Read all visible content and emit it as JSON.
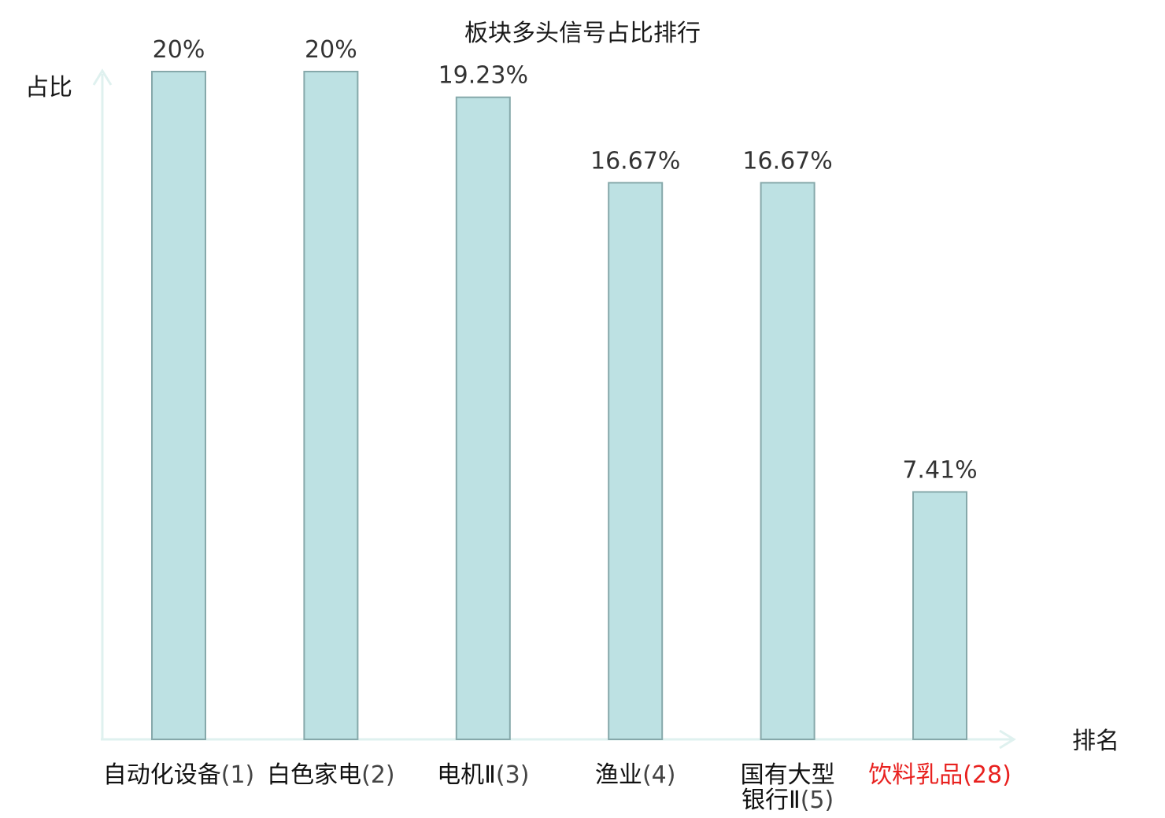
{
  "chart_data": {
    "type": "bar",
    "title": "板块多头信号占比排行",
    "ylabel": "占比",
    "xlabel": "排名",
    "categories": [
      {
        "name": "自动化设备",
        "rank": "(1)"
      },
      {
        "name": "白色家电",
        "rank": "(2)"
      },
      {
        "name": "电机Ⅱ",
        "rank": "(3)"
      },
      {
        "name": "渔业",
        "rank": "(4)"
      },
      {
        "name": "国有大型银行Ⅱ",
        "rank": "(5)"
      },
      {
        "name": "饮料乳品",
        "rank": "(28)",
        "highlight": true
      }
    ],
    "values": [
      20,
      20,
      19.23,
      16.67,
      16.67,
      7.41
    ],
    "value_labels": [
      "20%",
      "20%",
      "19.23%",
      "16.67%",
      "16.67%",
      "7.41%"
    ],
    "ylim": [
      0,
      20
    ],
    "grid": false,
    "colors": {
      "bar_fill": "#bde1e3",
      "bar_stroke": "#86a8aa",
      "axis": "#dff1ef",
      "highlight_text": "#e8211f",
      "normal_name_text": "#111111",
      "normal_rank_text": "#444444"
    }
  }
}
